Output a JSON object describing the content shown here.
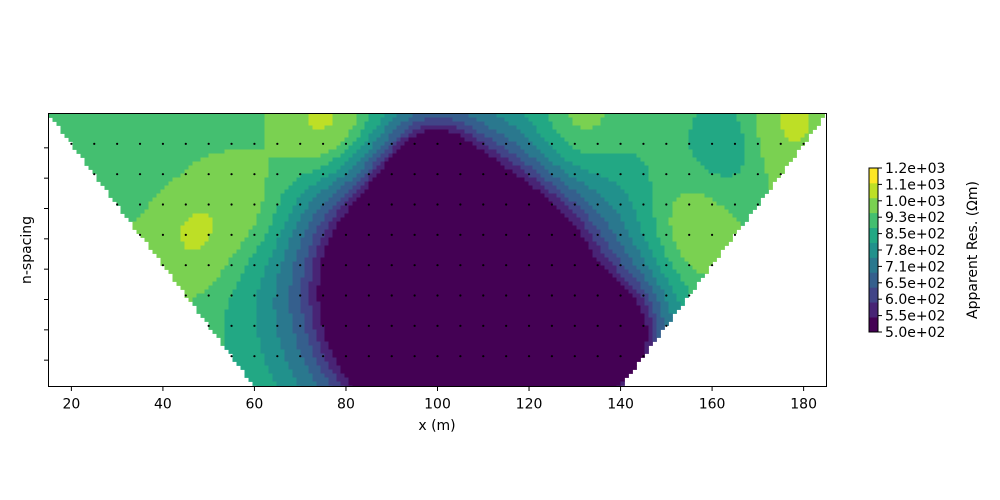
{
  "chart_data": {
    "type": "heatmap",
    "subtype": "filled-contour pseudosection",
    "title": "",
    "xlabel": "x (m)",
    "ylabel": "n-spacing",
    "xlim": [
      15,
      185
    ],
    "ylim": [
      0,
      9
    ],
    "x_ticks": [
      20,
      40,
      60,
      80,
      100,
      120,
      140,
      160,
      180
    ],
    "x_tick_labels": [
      "20",
      "40",
      "60",
      "80",
      "100",
      "120",
      "140",
      "160",
      "180"
    ],
    "y_ticks": [
      1,
      2,
      3,
      4,
      5,
      6,
      7,
      8
    ],
    "y_tick_labels": [
      "",
      "",
      "",
      "",
      "",
      "",
      "",
      ""
    ],
    "grid": false,
    "colorbar": {
      "label": "Apparent Res. (Ωm)",
      "colormap": "viridis",
      "range": [
        500,
        1200
      ],
      "tick_values": [
        500,
        550,
        600,
        650,
        710,
        780,
        850,
        930,
        1000,
        1100,
        1200
      ],
      "tick_labels": [
        "5.0e+02",
        "5.5e+02",
        "6.0e+02",
        "6.5e+02",
        "7.1e+02",
        "7.8e+02",
        "8.5e+02",
        "9.3e+02",
        "1.0e+03",
        "1.1e+03",
        "1.2e+03"
      ],
      "level_colors": [
        "#440154",
        "#482475",
        "#414487",
        "#355f8d",
        "#2a788e",
        "#21918c",
        "#22a884",
        "#44bf70",
        "#7ad151",
        "#bddf26",
        "#fde725"
      ]
    },
    "background_level": 1000,
    "measurement_levels": [
      {
        "n": 1,
        "x_start": 20,
        "x_end": 180
      },
      {
        "n": 2,
        "x_start": 25,
        "x_end": 175
      },
      {
        "n": 3,
        "x_start": 30,
        "x_end": 170
      },
      {
        "n": 4,
        "x_start": 35,
        "x_end": 165
      },
      {
        "n": 5,
        "x_start": 40,
        "x_end": 160
      },
      {
        "n": 6,
        "x_start": 45,
        "x_end": 155
      },
      {
        "n": 7,
        "x_start": 50,
        "x_end": 150
      },
      {
        "n": 8,
        "x_start": 55,
        "x_end": 145
      }
    ],
    "anomalies": [
      {
        "x": 105,
        "n": 6.2,
        "value": 540
      },
      {
        "x": 100,
        "n": 4.8,
        "value": 580
      },
      {
        "x": 110,
        "n": 7.6,
        "value": 620
      },
      {
        "x": 98,
        "n": 2.8,
        "value": 760
      },
      {
        "x": 100,
        "n": 1.2,
        "value": 880
      },
      {
        "x": 47,
        "n": 4.0,
        "value": 1140
      },
      {
        "x": 60,
        "n": 3.1,
        "value": 1120
      },
      {
        "x": 73,
        "n": 0.7,
        "value": 1150
      },
      {
        "x": 80,
        "n": 0.2,
        "value": 1130
      },
      {
        "x": 155,
        "n": 4.0,
        "value": 1130
      },
      {
        "x": 130,
        "n": 0.6,
        "value": 1130
      },
      {
        "x": 177,
        "n": 0.2,
        "value": 1130
      },
      {
        "x": 37,
        "n": 1.4,
        "value": 950
      },
      {
        "x": 163,
        "n": 0.9,
        "value": 880
      },
      {
        "x": 144,
        "n": 6.8,
        "value": 880
      },
      {
        "x": 139,
        "n": 7.8,
        "value": 760
      }
    ]
  }
}
